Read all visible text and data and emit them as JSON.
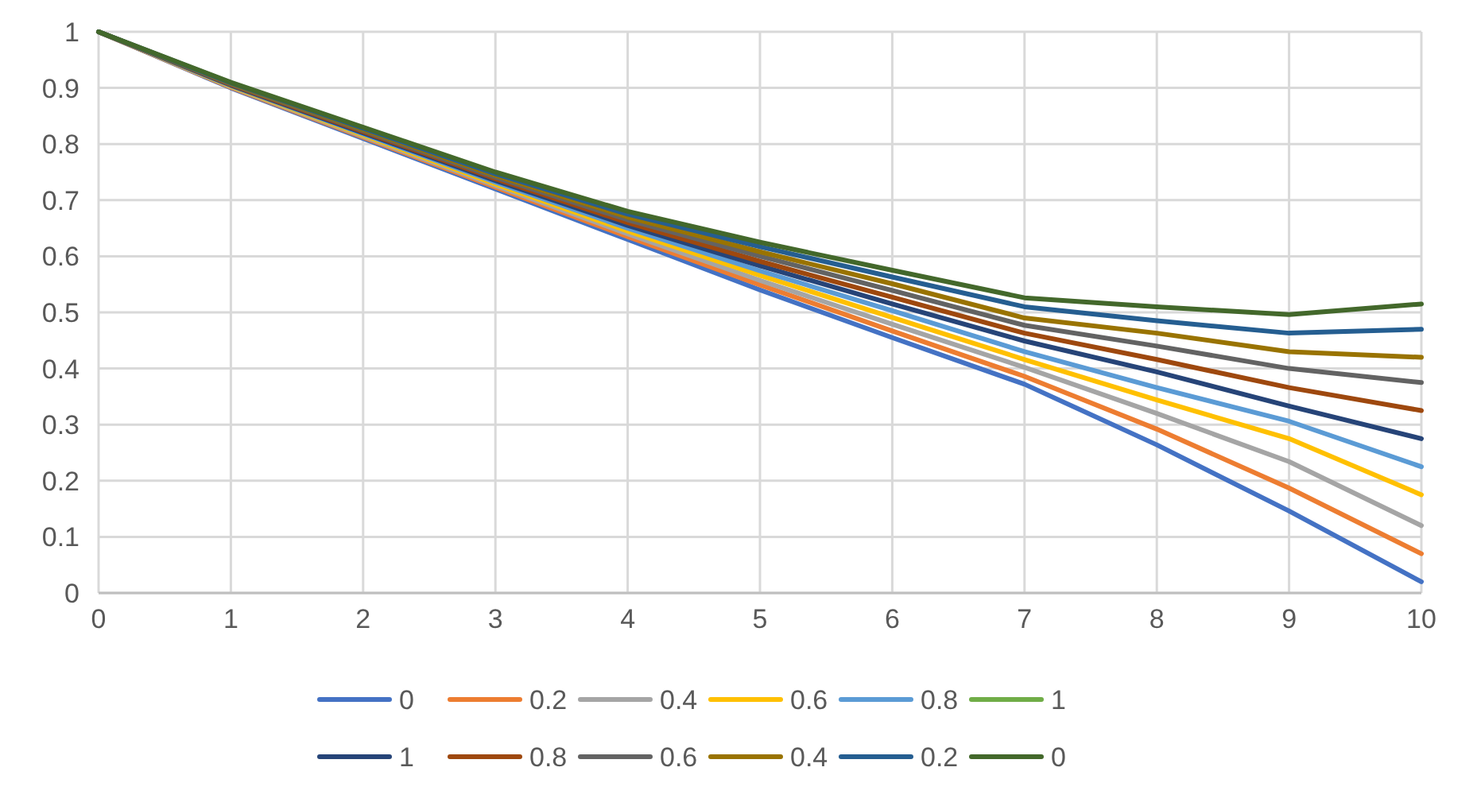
{
  "chart_data": {
    "type": "line",
    "x": [
      0,
      1,
      2,
      3,
      4,
      5,
      6,
      7,
      8,
      9,
      10
    ],
    "xlim": [
      0,
      10
    ],
    "xticks": [
      0,
      1,
      2,
      3,
      4,
      5,
      6,
      7,
      8,
      9,
      10
    ],
    "ylim": [
      0,
      1
    ],
    "yticks": [
      0,
      0.1,
      0.2,
      0.3,
      0.4,
      0.5,
      0.6,
      0.7,
      0.8,
      0.9,
      1
    ],
    "grid": true,
    "legend": "bottom",
    "marker": "none",
    "line_style": "solid",
    "series": [
      {
        "name": "0",
        "color": "#4472c4",
        "values": [
          1,
          0.9,
          0.81,
          0.72,
          0.63,
          0.54,
          0.455,
          0.372,
          0.264,
          0.146,
          0.02
        ]
      },
      {
        "name": "0.2",
        "color": "#ed7d31",
        "values": [
          1,
          0.901,
          0.812,
          0.723,
          0.635,
          0.549,
          0.467,
          0.386,
          0.292,
          0.187,
          0.07
        ]
      },
      {
        "name": "0.4",
        "color": "#a5a5a5",
        "values": [
          1,
          0.902,
          0.814,
          0.726,
          0.64,
          0.557,
          0.479,
          0.402,
          0.32,
          0.234,
          0.12
        ]
      },
      {
        "name": "0.6",
        "color": "#ffc000",
        "values": [
          1,
          0.903,
          0.816,
          0.729,
          0.645,
          0.566,
          0.491,
          0.416,
          0.344,
          0.275,
          0.175
        ]
      },
      {
        "name": "0.8",
        "color": "#5b9bd5",
        "values": [
          1,
          0.904,
          0.818,
          0.732,
          0.65,
          0.574,
          0.503,
          0.43,
          0.366,
          0.306,
          0.225
        ]
      },
      {
        "name": "1",
        "color": "#70ad47",
        "values": [
          null,
          null,
          null,
          null,
          null,
          null,
          null,
          null,
          null,
          null,
          null
        ]
      },
      {
        "name": "1",
        "color": "#264478",
        "values": [
          1,
          0.905,
          0.82,
          0.735,
          0.655,
          0.583,
          0.515,
          0.449,
          0.394,
          0.333,
          0.275
        ]
      },
      {
        "name": "0.8",
        "color": "#9e480e",
        "values": [
          1,
          0.906,
          0.822,
          0.738,
          0.66,
          0.591,
          0.527,
          0.463,
          0.416,
          0.366,
          0.325
        ]
      },
      {
        "name": "0.6",
        "color": "#636363",
        "values": [
          1,
          0.907,
          0.824,
          0.741,
          0.665,
          0.6,
          0.539,
          0.477,
          0.44,
          0.4,
          0.375
        ]
      },
      {
        "name": "0.4",
        "color": "#997300",
        "values": [
          1,
          0.908,
          0.826,
          0.744,
          0.67,
          0.608,
          0.551,
          0.49,
          0.463,
          0.43,
          0.42
        ]
      },
      {
        "name": "0.2",
        "color": "#255e91",
        "values": [
          1,
          0.909,
          0.828,
          0.747,
          0.675,
          0.617,
          0.563,
          0.51,
          0.485,
          0.463,
          0.47
        ]
      },
      {
        "name": "0",
        "color": "#43682b",
        "values": [
          1,
          0.91,
          0.83,
          0.75,
          0.68,
          0.625,
          0.575,
          0.526,
          0.51,
          0.496,
          0.515
        ]
      }
    ]
  }
}
